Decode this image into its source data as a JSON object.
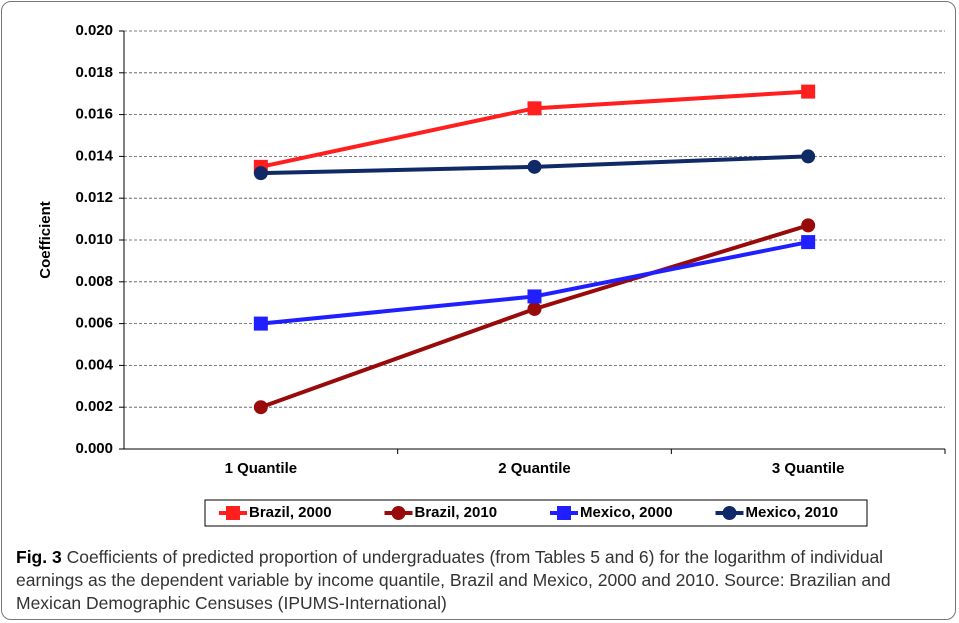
{
  "chart_data": {
    "type": "line",
    "y_label": "Coefficient",
    "categories": [
      "1 Quantile",
      "2 Quantile",
      "3 Quantile"
    ],
    "series": [
      {
        "name": "Brazil, 2000",
        "color": "#ff1f1f",
        "marker": "square",
        "values": [
          0.0135,
          0.0163,
          0.0171
        ]
      },
      {
        "name": "Brazil, 2010",
        "color": "#990a0a",
        "marker": "circle",
        "values": [
          0.002,
          0.0067,
          0.0107
        ]
      },
      {
        "name": "Mexico, 2000",
        "color": "#1f1fff",
        "marker": "square",
        "values": [
          0.006,
          0.0073,
          0.0099
        ]
      },
      {
        "name": "Mexico, 2010",
        "color": "#0f2a66",
        "marker": "circle",
        "values": [
          0.0132,
          0.0135,
          0.014
        ]
      }
    ],
    "ylim": [
      0,
      0.02
    ],
    "yticks": [
      {
        "value": 0,
        "label": "0.000"
      },
      {
        "value": 0.002,
        "label": "0.002"
      },
      {
        "value": 0.004,
        "label": "0.004"
      },
      {
        "value": 0.006,
        "label": "0.006"
      },
      {
        "value": 0.008,
        "label": "0.008"
      },
      {
        "value": 0.01,
        "label": "0.010"
      },
      {
        "value": 0.012,
        "label": "0.012"
      },
      {
        "value": 0.014,
        "label": "0.014"
      },
      {
        "value": 0.016,
        "label": "0.016"
      },
      {
        "value": 0.018,
        "label": "0.018"
      },
      {
        "value": 0.02,
        "label": "0.020"
      }
    ],
    "grid": true,
    "legend": "bottom",
    "caption_label": "Fig. 3",
    "caption": "Coefficients of predicted proportion of undergraduates (from Tables 5 and 6) for the logarithm of individual earnings as the dependent variable by income quantile, Brazil and Mexico, 2000 and 2010. Source: Brazilian and Mexican Demographic Censuses (IPUMS-International)"
  }
}
